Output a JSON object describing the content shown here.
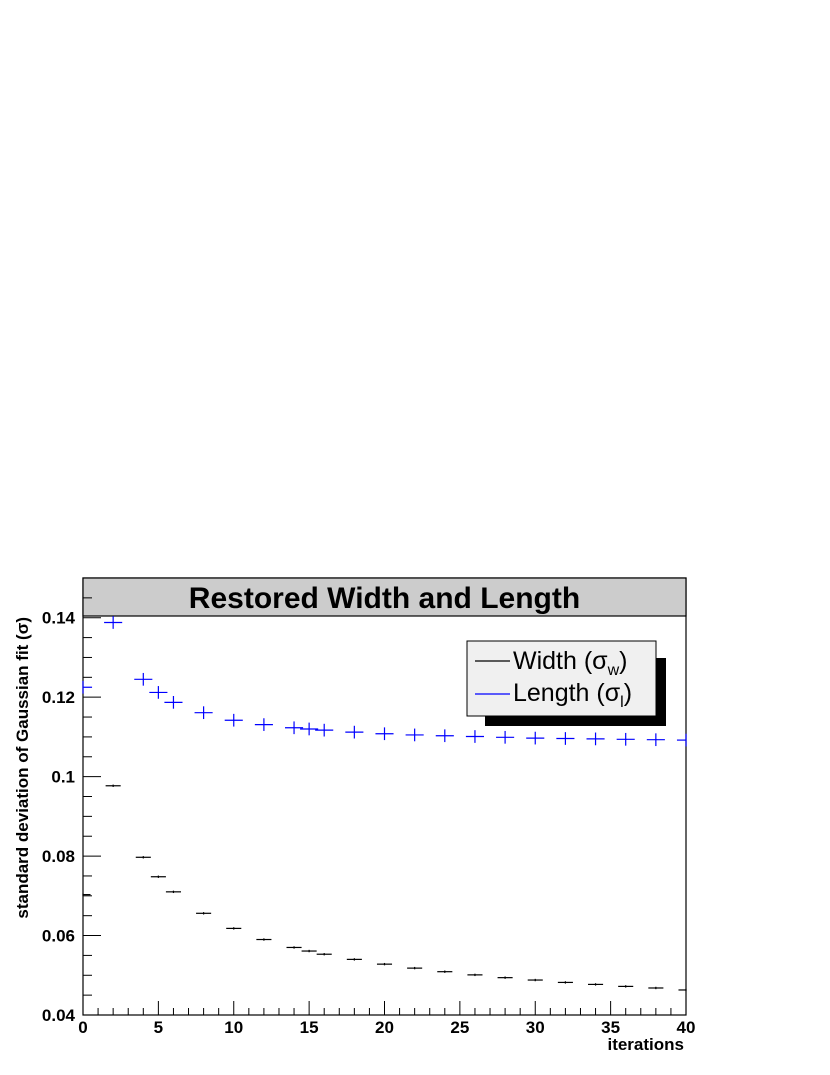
{
  "chart_data": {
    "type": "scatter",
    "title": "Restored Width and Length",
    "xlabel": "iterations",
    "ylabel": "standard deviation of Gaussian fit (σ)",
    "xlim": [
      0,
      40
    ],
    "ylim": [
      0.04,
      0.15
    ],
    "x_ticks": [
      0,
      5,
      10,
      15,
      20,
      25,
      30,
      35,
      40
    ],
    "y_ticks": [
      0.04,
      0.06,
      0.08,
      0.1,
      0.12,
      0.14
    ],
    "y_tick_labels": [
      "0.04",
      "0.06",
      "0.08",
      "0.1",
      "0.12",
      "0.14"
    ],
    "grid": false,
    "legend_position": "top-right",
    "series": [
      {
        "name": "Width (σw)",
        "legend_main": "Width (σ",
        "legend_sub": "w",
        "legend_close": ")",
        "color": "#000000",
        "x": [
          0,
          2,
          4,
          5,
          6,
          8,
          10,
          12,
          14,
          15,
          16,
          18,
          20,
          22,
          24,
          26,
          28,
          30,
          32,
          34,
          36,
          38,
          40
        ],
        "y": [
          0.0703,
          0.0977,
          0.0797,
          0.0748,
          0.071,
          0.0656,
          0.0618,
          0.059,
          0.057,
          0.0561,
          0.0553,
          0.054,
          0.0528,
          0.0518,
          0.0509,
          0.0501,
          0.0494,
          0.0488,
          0.0482,
          0.0477,
          0.0472,
          0.0468,
          0.0463
        ],
        "x_err": 0.5,
        "y_err": [
          0.0003,
          0.0003,
          0.0003,
          0.0003,
          0.0003,
          0.0003,
          0.0003,
          0.0003,
          0.0003,
          0.0003,
          0.0003,
          0.0003,
          0.0003,
          0.0003,
          0.0003,
          0.0003,
          0.0003,
          0.0003,
          0.0003,
          0.0003,
          0.0003,
          0.0003,
          0.0003
        ]
      },
      {
        "name": "Length (σl)",
        "legend_main": "Length (σ",
        "legend_sub": "l",
        "legend_close": ")",
        "color": "#0000ff",
        "x": [
          0,
          2,
          4,
          5,
          6,
          8,
          10,
          12,
          14,
          15,
          16,
          18,
          20,
          22,
          24,
          26,
          28,
          30,
          32,
          34,
          36,
          38,
          40
        ],
        "y": [
          0.1225,
          0.1388,
          0.1245,
          0.1212,
          0.1187,
          0.1161,
          0.1142,
          0.1131,
          0.1123,
          0.112,
          0.1117,
          0.1112,
          0.1108,
          0.1105,
          0.1103,
          0.1101,
          0.1099,
          0.1097,
          0.1096,
          0.1095,
          0.1094,
          0.1093,
          0.1092
        ],
        "x_err": 0.6,
        "y_err": [
          0.0016,
          0.0016,
          0.0016,
          0.0016,
          0.0016,
          0.0016,
          0.0016,
          0.0016,
          0.0016,
          0.0016,
          0.0016,
          0.0016,
          0.0016,
          0.0016,
          0.0016,
          0.0016,
          0.0016,
          0.0016,
          0.0016,
          0.0016,
          0.0016,
          0.0016,
          0.0016
        ]
      }
    ],
    "colors": {
      "title_box_fill": "#cccccc",
      "legend_fill": "#f0f0f0",
      "legend_shadow": "#000000",
      "frame": "#000000"
    }
  }
}
